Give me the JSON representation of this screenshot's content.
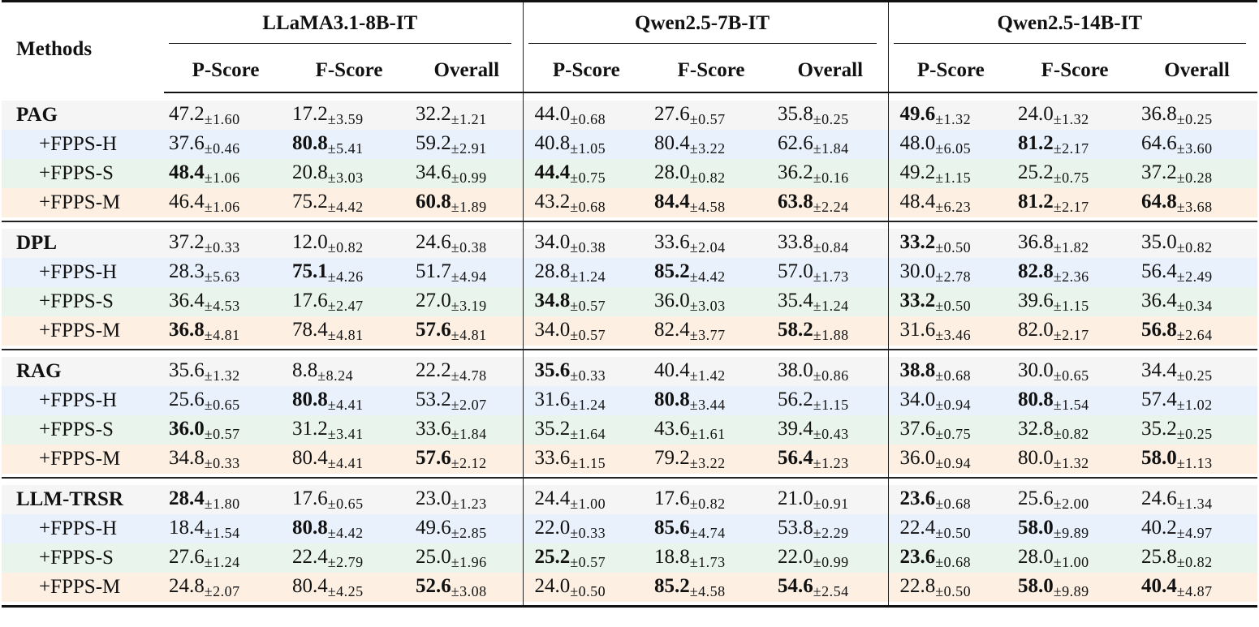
{
  "table": {
    "header": {
      "methods_label": "Methods",
      "models": [
        "LLaMA3.1-8B-IT",
        "Qwen2.5-7B-IT",
        "Qwen2.5-14B-IT"
      ],
      "metrics": [
        "P-Score",
        "F-Score",
        "Overall"
      ]
    },
    "colors": {
      "base_row": "#f5f5f5",
      "fpps_h_row": "#e8f1fc",
      "fpps_s_row": "#e9f5ec",
      "fpps_m_row": "#fdf0e3"
    },
    "groups": [
      {
        "base": "PAG",
        "rows": [
          {
            "method": "PAG",
            "type": "base",
            "cells": [
              {
                "v": "47.2",
                "s": "±1.60",
                "b": false
              },
              {
                "v": "17.2",
                "s": "±3.59",
                "b": false
              },
              {
                "v": "32.2",
                "s": "±1.21",
                "b": false
              },
              {
                "v": "44.0",
                "s": "±0.68",
                "b": false
              },
              {
                "v": "27.6",
                "s": "±0.57",
                "b": false
              },
              {
                "v": "35.8",
                "s": "±0.25",
                "b": false
              },
              {
                "v": "49.6",
                "s": "±1.32",
                "b": true
              },
              {
                "v": "24.0",
                "s": "±1.32",
                "b": false
              },
              {
                "v": "36.8",
                "s": "±0.25",
                "b": false
              }
            ]
          },
          {
            "method": "+FPPS-H",
            "type": "h",
            "cells": [
              {
                "v": "37.6",
                "s": "±0.46",
                "b": false
              },
              {
                "v": "80.8",
                "s": "±5.41",
                "b": true
              },
              {
                "v": "59.2",
                "s": "±2.91",
                "b": false
              },
              {
                "v": "40.8",
                "s": "±1.05",
                "b": false
              },
              {
                "v": "80.4",
                "s": "±3.22",
                "b": false
              },
              {
                "v": "62.6",
                "s": "±1.84",
                "b": false
              },
              {
                "v": "48.0",
                "s": "±6.05",
                "b": false
              },
              {
                "v": "81.2",
                "s": "±2.17",
                "b": true
              },
              {
                "v": "64.6",
                "s": "±3.60",
                "b": false
              }
            ]
          },
          {
            "method": "+FPPS-S",
            "type": "s",
            "cells": [
              {
                "v": "48.4",
                "s": "±1.06",
                "b": true
              },
              {
                "v": "20.8",
                "s": "±3.03",
                "b": false
              },
              {
                "v": "34.6",
                "s": "±0.99",
                "b": false
              },
              {
                "v": "44.4",
                "s": "±0.75",
                "b": true
              },
              {
                "v": "28.0",
                "s": "±0.82",
                "b": false
              },
              {
                "v": "36.2",
                "s": "±0.16",
                "b": false
              },
              {
                "v": "49.2",
                "s": "±1.15",
                "b": false
              },
              {
                "v": "25.2",
                "s": "±0.75",
                "b": false
              },
              {
                "v": "37.2",
                "s": "±0.28",
                "b": false
              }
            ]
          },
          {
            "method": "+FPPS-M",
            "type": "m",
            "cells": [
              {
                "v": "46.4",
                "s": "±1.06",
                "b": false
              },
              {
                "v": "75.2",
                "s": "±4.42",
                "b": false
              },
              {
                "v": "60.8",
                "s": "±1.89",
                "b": true
              },
              {
                "v": "43.2",
                "s": "±0.68",
                "b": false
              },
              {
                "v": "84.4",
                "s": "±4.58",
                "b": true
              },
              {
                "v": "63.8",
                "s": "±2.24",
                "b": true
              },
              {
                "v": "48.4",
                "s": "±6.23",
                "b": false
              },
              {
                "v": "81.2",
                "s": "±2.17",
                "b": true
              },
              {
                "v": "64.8",
                "s": "±3.68",
                "b": true
              }
            ]
          }
        ]
      },
      {
        "base": "DPL",
        "rows": [
          {
            "method": "DPL",
            "type": "base",
            "cells": [
              {
                "v": "37.2",
                "s": "±0.33",
                "b": false
              },
              {
                "v": "12.0",
                "s": "±0.82",
                "b": false
              },
              {
                "v": "24.6",
                "s": "±0.38",
                "b": false
              },
              {
                "v": "34.0",
                "s": "±0.38",
                "b": false
              },
              {
                "v": "33.6",
                "s": "±2.04",
                "b": false
              },
              {
                "v": "33.8",
                "s": "±0.84",
                "b": false
              },
              {
                "v": "33.2",
                "s": "±0.50",
                "b": true
              },
              {
                "v": "36.8",
                "s": "±1.82",
                "b": false
              },
              {
                "v": "35.0",
                "s": "±0.82",
                "b": false
              }
            ]
          },
          {
            "method": "+FPPS-H",
            "type": "h",
            "cells": [
              {
                "v": "28.3",
                "s": "±5.63",
                "b": false
              },
              {
                "v": "75.1",
                "s": "±4.26",
                "b": true
              },
              {
                "v": "51.7",
                "s": "±4.94",
                "b": false
              },
              {
                "v": "28.8",
                "s": "±1.24",
                "b": false
              },
              {
                "v": "85.2",
                "s": "±4.42",
                "b": true
              },
              {
                "v": "57.0",
                "s": "±1.73",
                "b": false
              },
              {
                "v": "30.0",
                "s": "±2.78",
                "b": false
              },
              {
                "v": "82.8",
                "s": "±2.36",
                "b": true
              },
              {
                "v": "56.4",
                "s": "±2.49",
                "b": false
              }
            ]
          },
          {
            "method": "+FPPS-S",
            "type": "s",
            "cells": [
              {
                "v": "36.4",
                "s": "±4.53",
                "b": false
              },
              {
                "v": "17.6",
                "s": "±2.47",
                "b": false
              },
              {
                "v": "27.0",
                "s": "±3.19",
                "b": false
              },
              {
                "v": "34.8",
                "s": "±0.57",
                "b": true
              },
              {
                "v": "36.0",
                "s": "±3.03",
                "b": false
              },
              {
                "v": "35.4",
                "s": "±1.24",
                "b": false
              },
              {
                "v": "33.2",
                "s": "±0.50",
                "b": true
              },
              {
                "v": "39.6",
                "s": "±1.15",
                "b": false
              },
              {
                "v": "36.4",
                "s": "±0.34",
                "b": false
              }
            ]
          },
          {
            "method": "+FPPS-M",
            "type": "m",
            "cells": [
              {
                "v": "36.8",
                "s": "±4.81",
                "b": true
              },
              {
                "v": "78.4",
                "s": "±4.81",
                "b": false
              },
              {
                "v": "57.6",
                "s": "±4.81",
                "b": true
              },
              {
                "v": "34.0",
                "s": "±0.57",
                "b": false
              },
              {
                "v": "82.4",
                "s": "±3.77",
                "b": false
              },
              {
                "v": "58.2",
                "s": "±1.88",
                "b": true
              },
              {
                "v": "31.6",
                "s": "±3.46",
                "b": false
              },
              {
                "v": "82.0",
                "s": "±2.17",
                "b": false
              },
              {
                "v": "56.8",
                "s": "±2.64",
                "b": true
              }
            ]
          }
        ]
      },
      {
        "base": "RAG",
        "rows": [
          {
            "method": "RAG",
            "type": "base",
            "cells": [
              {
                "v": "35.6",
                "s": "±1.32",
                "b": false
              },
              {
                "v": "8.8",
                "s": "±8.24",
                "b": false
              },
              {
                "v": "22.2",
                "s": "±4.78",
                "b": false
              },
              {
                "v": "35.6",
                "s": "±0.33",
                "b": true
              },
              {
                "v": "40.4",
                "s": "±1.42",
                "b": false
              },
              {
                "v": "38.0",
                "s": "±0.86",
                "b": false
              },
              {
                "v": "38.8",
                "s": "±0.68",
                "b": true
              },
              {
                "v": "30.0",
                "s": "±0.65",
                "b": false
              },
              {
                "v": "34.4",
                "s": "±0.25",
                "b": false
              }
            ]
          },
          {
            "method": "+FPPS-H",
            "type": "h",
            "cells": [
              {
                "v": "25.6",
                "s": "±0.65",
                "b": false
              },
              {
                "v": "80.8",
                "s": "±4.41",
                "b": true
              },
              {
                "v": "53.2",
                "s": "±2.07",
                "b": false
              },
              {
                "v": "31.6",
                "s": "±1.24",
                "b": false
              },
              {
                "v": "80.8",
                "s": "±3.44",
                "b": true
              },
              {
                "v": "56.2",
                "s": "±1.15",
                "b": false
              },
              {
                "v": "34.0",
                "s": "±0.94",
                "b": false
              },
              {
                "v": "80.8",
                "s": "±1.54",
                "b": true
              },
              {
                "v": "57.4",
                "s": "±1.02",
                "b": false
              }
            ]
          },
          {
            "method": "+FPPS-S",
            "type": "s",
            "cells": [
              {
                "v": "36.0",
                "s": "±0.57",
                "b": true
              },
              {
                "v": "31.2",
                "s": "±3.41",
                "b": false
              },
              {
                "v": "33.6",
                "s": "±1.84",
                "b": false
              },
              {
                "v": "35.2",
                "s": "±1.64",
                "b": false
              },
              {
                "v": "43.6",
                "s": "±1.61",
                "b": false
              },
              {
                "v": "39.4",
                "s": "±0.43",
                "b": false
              },
              {
                "v": "37.6",
                "s": "±0.75",
                "b": false
              },
              {
                "v": "32.8",
                "s": "±0.82",
                "b": false
              },
              {
                "v": "35.2",
                "s": "±0.25",
                "b": false
              }
            ]
          },
          {
            "method": "+FPPS-M",
            "type": "m",
            "cells": [
              {
                "v": "34.8",
                "s": "±0.33",
                "b": false
              },
              {
                "v": "80.4",
                "s": "±4.41",
                "b": false
              },
              {
                "v": "57.6",
                "s": "±2.12",
                "b": true
              },
              {
                "v": "33.6",
                "s": "±1.15",
                "b": false
              },
              {
                "v": "79.2",
                "s": "±3.22",
                "b": false
              },
              {
                "v": "56.4",
                "s": "±1.23",
                "b": true
              },
              {
                "v": "36.0",
                "s": "±0.94",
                "b": false
              },
              {
                "v": "80.0",
                "s": "±1.32",
                "b": false
              },
              {
                "v": "58.0",
                "s": "±1.13",
                "b": true
              }
            ]
          }
        ]
      },
      {
        "base": "LLM-TRSR",
        "rows": [
          {
            "method": "LLM-TRSR",
            "type": "base",
            "cells": [
              {
                "v": "28.4",
                "s": "±1.80",
                "b": true
              },
              {
                "v": "17.6",
                "s": "±0.65",
                "b": false
              },
              {
                "v": "23.0",
                "s": "±1.23",
                "b": false
              },
              {
                "v": "24.4",
                "s": "±1.00",
                "b": false
              },
              {
                "v": "17.6",
                "s": "±0.82",
                "b": false
              },
              {
                "v": "21.0",
                "s": "±0.91",
                "b": false
              },
              {
                "v": "23.6",
                "s": "±0.68",
                "b": true
              },
              {
                "v": "25.6",
                "s": "±2.00",
                "b": false
              },
              {
                "v": "24.6",
                "s": "±1.34",
                "b": false
              }
            ]
          },
          {
            "method": "+FPPS-H",
            "type": "h",
            "cells": [
              {
                "v": "18.4",
                "s": "±1.54",
                "b": false
              },
              {
                "v": "80.8",
                "s": "±4.42",
                "b": true
              },
              {
                "v": "49.6",
                "s": "±2.85",
                "b": false
              },
              {
                "v": "22.0",
                "s": "±0.33",
                "b": false
              },
              {
                "v": "85.6",
                "s": "±4.74",
                "b": true
              },
              {
                "v": "53.8",
                "s": "±2.29",
                "b": false
              },
              {
                "v": "22.4",
                "s": "±0.50",
                "b": false
              },
              {
                "v": "58.0",
                "s": "±9.89",
                "b": true
              },
              {
                "v": "40.2",
                "s": "±4.97",
                "b": false
              }
            ]
          },
          {
            "method": "+FPPS-S",
            "type": "s",
            "cells": [
              {
                "v": "27.6",
                "s": "±1.24",
                "b": false
              },
              {
                "v": "22.4",
                "s": "±2.79",
                "b": false
              },
              {
                "v": "25.0",
                "s": "±1.96",
                "b": false
              },
              {
                "v": "25.2",
                "s": "±0.57",
                "b": true
              },
              {
                "v": "18.8",
                "s": "±1.73",
                "b": false
              },
              {
                "v": "22.0",
                "s": "±0.99",
                "b": false
              },
              {
                "v": "23.6",
                "s": "±0.68",
                "b": true
              },
              {
                "v": "28.0",
                "s": "±1.00",
                "b": false
              },
              {
                "v": "25.8",
                "s": "±0.82",
                "b": false
              }
            ]
          },
          {
            "method": "+FPPS-M",
            "type": "m",
            "cells": [
              {
                "v": "24.8",
                "s": "±2.07",
                "b": false
              },
              {
                "v": "80.4",
                "s": "±4.25",
                "b": false
              },
              {
                "v": "52.6",
                "s": "±3.08",
                "b": true
              },
              {
                "v": "24.0",
                "s": "±0.50",
                "b": false
              },
              {
                "v": "85.2",
                "s": "±4.58",
                "b": true
              },
              {
                "v": "54.6",
                "s": "±2.54",
                "b": true
              },
              {
                "v": "22.8",
                "s": "±0.50",
                "b": false
              },
              {
                "v": "58.0",
                "s": "±9.89",
                "b": true
              },
              {
                "v": "40.4",
                "s": "±4.87",
                "b": true
              }
            ]
          }
        ]
      }
    ]
  }
}
